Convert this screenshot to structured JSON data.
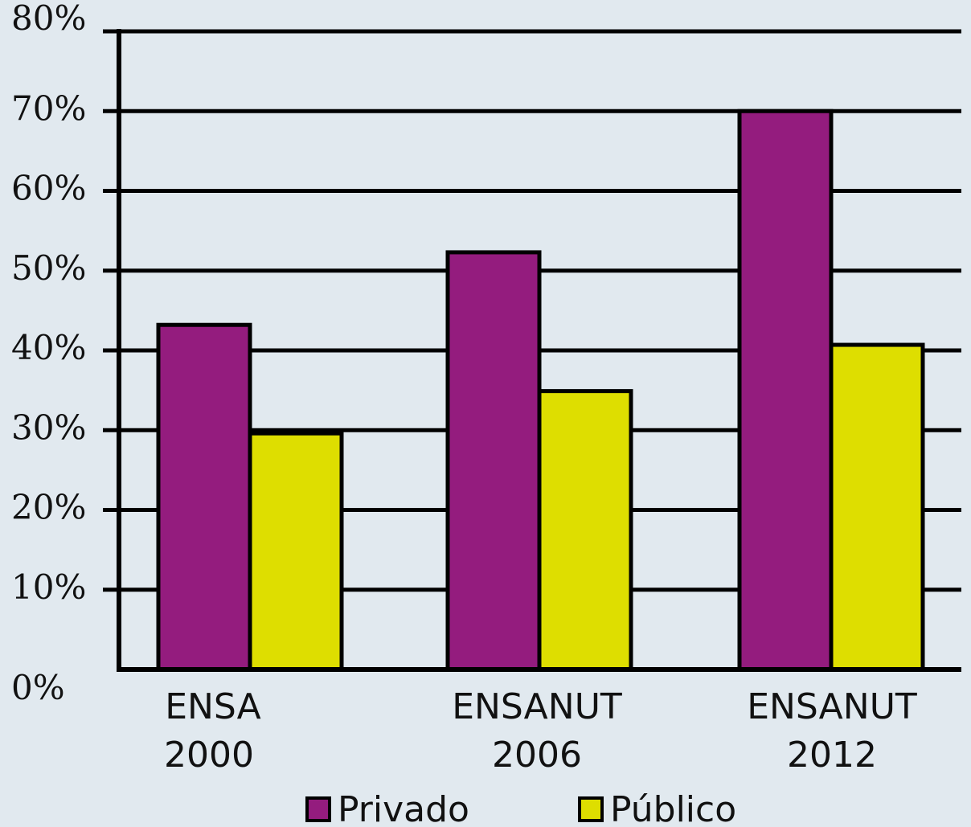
{
  "chart_data": {
    "type": "bar",
    "categories": [
      [
        "ENSA",
        "2000"
      ],
      [
        "ENSANUT",
        "2006"
      ],
      [
        "ENSANUT",
        "2012"
      ]
    ],
    "series": [
      {
        "name": "Privado",
        "color": "#941c7e",
        "values": [
          43.2,
          52.3,
          70.0
        ]
      },
      {
        "name": "Público",
        "color": "#dede00",
        "values": [
          29.6,
          34.9,
          40.7
        ]
      }
    ],
    "ylim": [
      0,
      80
    ],
    "yticks": [
      0,
      10,
      20,
      30,
      40,
      50,
      60,
      70,
      80
    ],
    "ytick_labels": [
      "0%",
      "10%",
      "20%",
      "30%",
      "40%",
      "50%",
      "60%",
      "70%",
      "80%"
    ],
    "grid": true,
    "legend": "bottom",
    "colors": {
      "background": "#e1e9ef",
      "axis": "#000000"
    }
  }
}
